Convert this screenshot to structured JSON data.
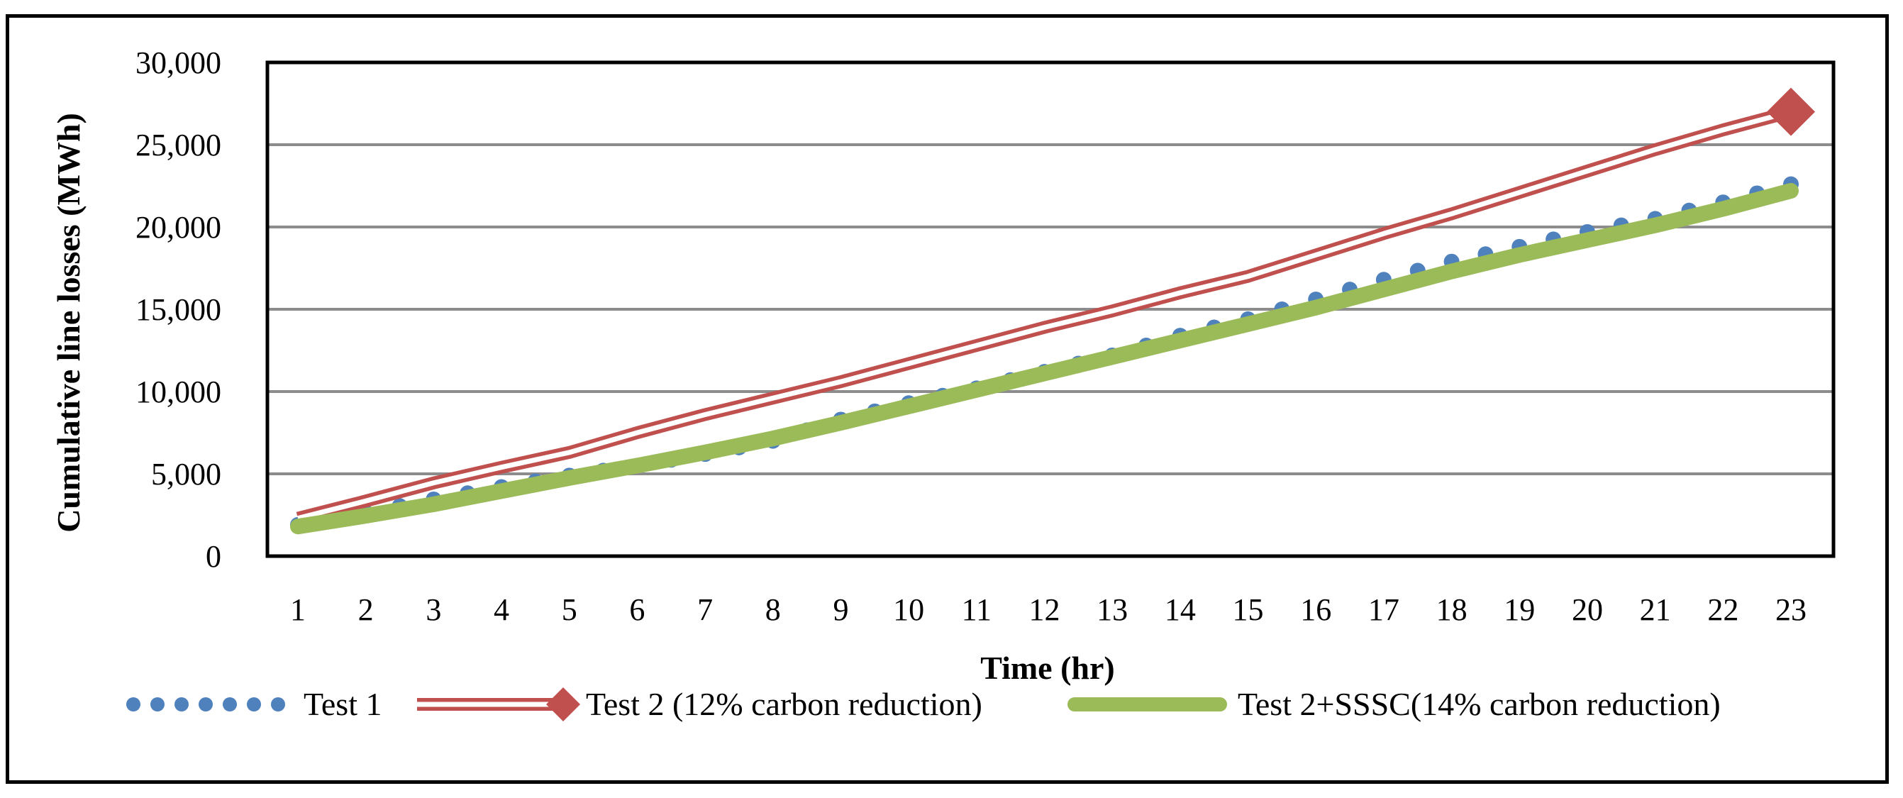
{
  "chart_data": {
    "type": "line",
    "title": "",
    "xlabel": "Time (hr)",
    "ylabel": "Cumulative line losses (MWh)",
    "ylim": [
      0,
      30000
    ],
    "yticks": [
      0,
      5000,
      10000,
      15000,
      20000,
      25000,
      30000
    ],
    "ytick_labels": [
      "0",
      "5,000",
      "10,000",
      "15,000",
      "20,000",
      "25,000",
      "30,000"
    ],
    "grid": true,
    "legend_position": "bottom",
    "categories": [
      "1",
      "2",
      "3",
      "4",
      "5",
      "6",
      "7",
      "8",
      "9",
      "10",
      "11",
      "12",
      "13",
      "14",
      "15",
      "16",
      "17",
      "18",
      "19",
      "20",
      "21",
      "22",
      "23"
    ],
    "series": [
      {
        "name": "Test 1",
        "color": "#4F81BD",
        "style": "dotted",
        "values": [
          1900,
          2650,
          3450,
          4200,
          4900,
          5500,
          6200,
          7000,
          8300,
          9300,
          10200,
          11200,
          12200,
          13400,
          14400,
          15600,
          16800,
          17900,
          18800,
          19700,
          20500,
          21500,
          22600
        ]
      },
      {
        "name": "Test 2 (12% carbon reduction)",
        "color": "#C0504D",
        "style": "double-line",
        "marker": "diamond",
        "values": [
          2300,
          3350,
          4450,
          5400,
          6300,
          7500,
          8600,
          9600,
          10600,
          11700,
          12800,
          13900,
          14900,
          16000,
          17000,
          18300,
          19600,
          20800,
          22100,
          23400,
          24700,
          25900,
          27000
        ]
      },
      {
        "name": "Test 2+SSSC(14% carbon reduction)",
        "color": "#9BBB59",
        "style": "thick",
        "values": [
          1800,
          2450,
          3150,
          3950,
          4750,
          5500,
          6300,
          7150,
          8100,
          9100,
          10100,
          11100,
          12100,
          13100,
          14100,
          15100,
          16200,
          17300,
          18300,
          19200,
          20100,
          21100,
          22200
        ]
      }
    ]
  }
}
